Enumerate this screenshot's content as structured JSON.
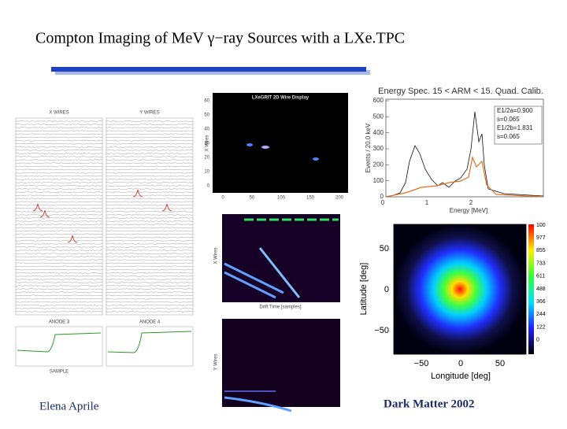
{
  "header": {
    "title": "Compton Imaging of MeV γ−ray Sources with a LXe.TPC"
  },
  "wire_panel": {
    "x_title": "X WIRES",
    "y_title": "Y WIRES",
    "x_anode": "ANODE 3",
    "y_anode": "ANODE 4",
    "xlabel": "SAMPLE"
  },
  "wire_display": {
    "title": "LXeGRIT 2D Wire Display",
    "ylabel": "X Wires",
    "ylabel2": "Y Wires",
    "xlabel": "Drift Time [samples]",
    "xticks": [
      "0",
      "50",
      "100",
      "150",
      "200"
    ],
    "yticks": [
      "60",
      "50",
      "40",
      "30",
      "20",
      "10",
      "0"
    ]
  },
  "spectrum": {
    "title": "Energy Spec.  15 < ARM < 15. Quad. Calib.",
    "xlabel": "Energy [MeV]",
    "ylabel": "Events / 20.0 keV",
    "xticks": [
      "0",
      "1",
      "2"
    ],
    "yticks": [
      "600",
      "500",
      "400",
      "300",
      "200",
      "100",
      "0"
    ],
    "legend": [
      "E1/2a=0.900",
      "s=0.065",
      "E1/2b=1.831",
      "s=0.065"
    ]
  },
  "map": {
    "xlabel": "Longitude [deg]",
    "ylabel": "Latitude [deg]",
    "xticks": [
      "−50",
      "0",
      "50"
    ],
    "yticks": [
      "50",
      "0",
      "−50"
    ],
    "colorbar": [
      "100",
      "977",
      "855",
      "733",
      "611",
      "488",
      "366",
      "244",
      "122",
      "0"
    ]
  },
  "footer": {
    "author": "Elena Aprile",
    "event": "Dark Matter 2002"
  }
}
